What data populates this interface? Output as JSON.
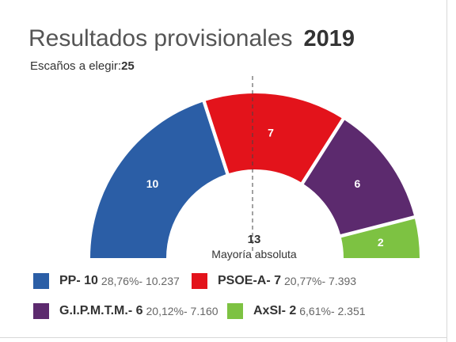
{
  "title": "Resultados provisionales",
  "year": "2019",
  "seats_label": "Escaños a elegir:",
  "seats_total": "25",
  "colors": {
    "pp": "#2b5ea6",
    "psoe": "#e3131b",
    "gip": "#5c2a6e",
    "axsi": "#7dc242"
  },
  "chart_data": {
    "type": "pie",
    "subtype": "parliament-hemicycle",
    "total_seats": 25,
    "majority": {
      "value": "13",
      "label": "Mayoría absoluta"
    },
    "series": [
      {
        "name": "PP",
        "seats": 10,
        "label": "10",
        "color": "#2b5ea6"
      },
      {
        "name": "PSOE-A",
        "seats": 7,
        "label": "7",
        "color": "#e3131b"
      },
      {
        "name": "G.I.P.M.T.M.",
        "seats": 6,
        "label": "6",
        "color": "#5c2a6e"
      },
      {
        "name": "AxSI",
        "seats": 2,
        "label": "2",
        "color": "#7dc242"
      }
    ]
  },
  "legend": [
    {
      "party": "PP- 10",
      "detail": "28,76%- 10.237"
    },
    {
      "party": "PSOE-A- 7",
      "detail": "20,77%- 7.393"
    },
    {
      "party": "G.I.P.M.T.M.- 6",
      "detail": "20,12%- 7.160"
    },
    {
      "party": "AxSI- 2",
      "detail": "6,61%- 2.351"
    }
  ]
}
